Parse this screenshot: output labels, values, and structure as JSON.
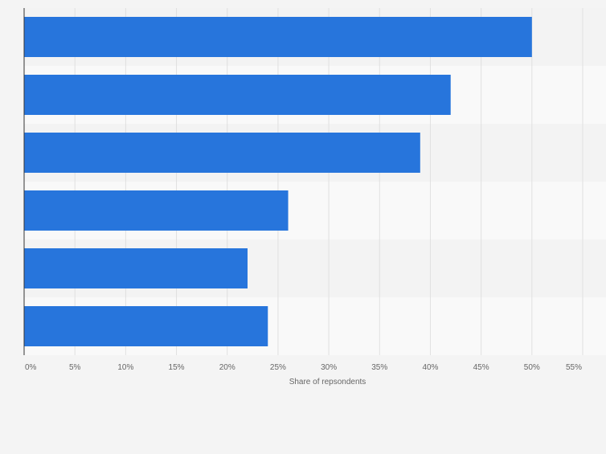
{
  "chart_data": {
    "type": "bar",
    "orientation": "horizontal",
    "categories": [
      "",
      "",
      "",
      "",
      "",
      ""
    ],
    "values": [
      50,
      42,
      39,
      26,
      22,
      24
    ],
    "title": "",
    "xlabel": "Share of repsondents",
    "ylabel": "",
    "xlim": [
      0,
      55
    ],
    "x_ticks": [
      0,
      5,
      10,
      15,
      20,
      25,
      30,
      35,
      40,
      45,
      50,
      55
    ],
    "x_tick_labels": [
      "0%",
      "5%",
      "10%",
      "15%",
      "20%",
      "25%",
      "30%",
      "35%",
      "40%",
      "45%",
      "50%",
      "55%"
    ],
    "grid": true,
    "legend": "none",
    "colors": {
      "bar": "#2775dc",
      "band_dark": "#f3f3f3",
      "band_light": "#f9f9f9",
      "grid": "#e0e0e0",
      "axis": "#333333",
      "text": "#666666"
    }
  }
}
